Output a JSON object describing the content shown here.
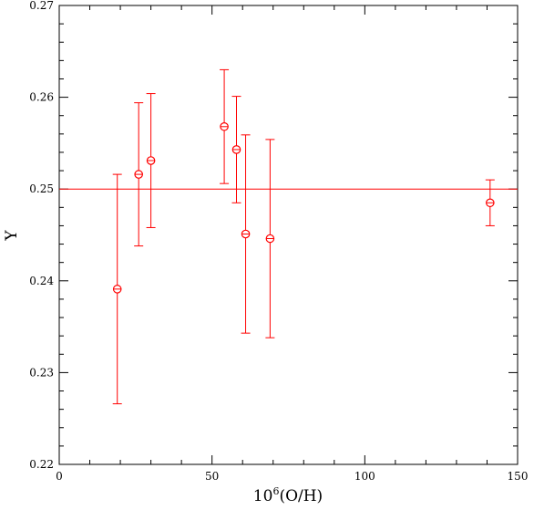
{
  "chart_data": {
    "type": "scatter",
    "title": "",
    "xlabel": "10",
    "xlabel_sup": "6",
    "xlabel_rest": "(O/H)",
    "ylabel": "Y",
    "xlim": [
      0,
      150
    ],
    "ylim": [
      0.22,
      0.27
    ],
    "x_ticks": [
      0,
      50,
      100,
      150
    ],
    "x_tick_labels": [
      "0",
      "50",
      "100",
      "150"
    ],
    "y_ticks": [
      0.22,
      0.23,
      0.24,
      0.25,
      0.26,
      0.27
    ],
    "y_tick_labels": [
      "0.22",
      "0.23",
      "0.24",
      "0.25",
      "0.26",
      "0.27"
    ],
    "grid": false,
    "reference_line": 0.25,
    "color": "#ff0000",
    "points": [
      {
        "x": 19,
        "y": 0.2391,
        "y_low": 0.2266,
        "y_high": 0.2516
      },
      {
        "x": 26,
        "y": 0.2516,
        "y_low": 0.2438,
        "y_high": 0.2594
      },
      {
        "x": 30,
        "y": 0.2531,
        "y_low": 0.2458,
        "y_high": 0.2604
      },
      {
        "x": 54,
        "y": 0.2568,
        "y_low": 0.2506,
        "y_high": 0.263
      },
      {
        "x": 58,
        "y": 0.2543,
        "y_low": 0.2485,
        "y_high": 0.2601
      },
      {
        "x": 61,
        "y": 0.2451,
        "y_low": 0.2343,
        "y_high": 0.2559
      },
      {
        "x": 69,
        "y": 0.2446,
        "y_low": 0.2338,
        "y_high": 0.2554
      },
      {
        "x": 141,
        "y": 0.2485,
        "y_low": 0.246,
        "y_high": 0.251
      }
    ]
  }
}
